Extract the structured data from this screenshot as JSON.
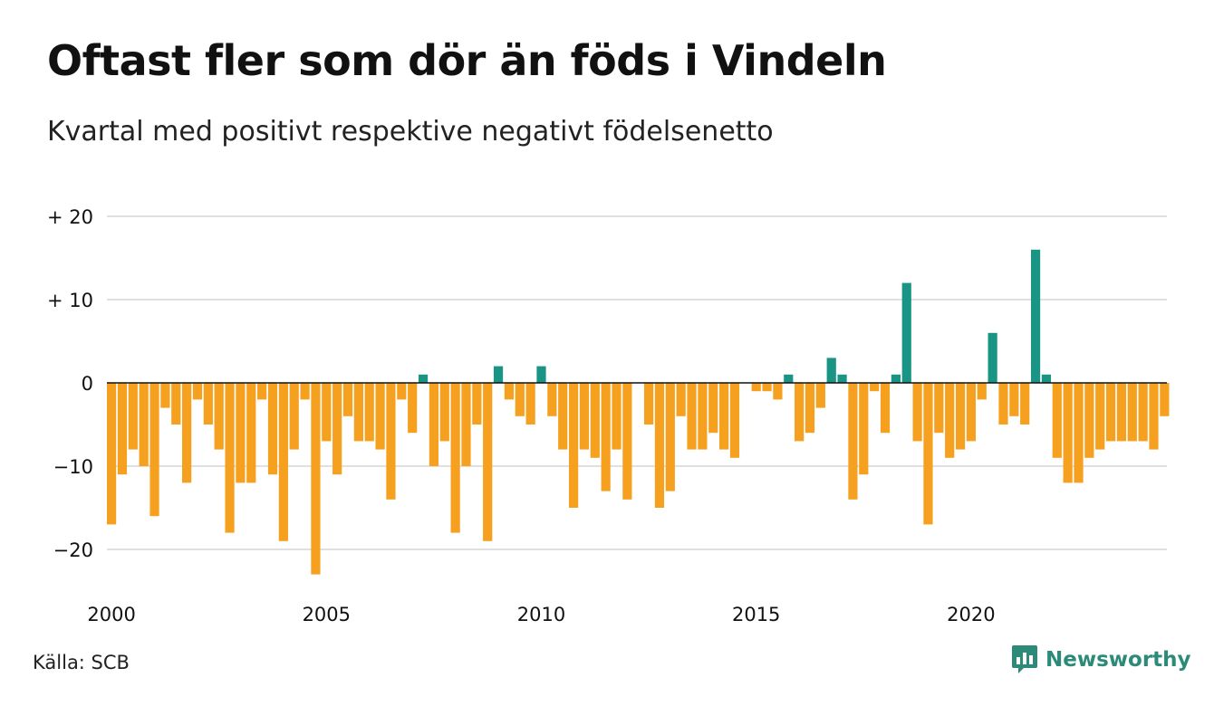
{
  "title": "Oftast fler som dör än föds i Vindeln",
  "subtitle": "Kvartal med positivt respektive negativt födelsenetto",
  "source": "Källa: SCB",
  "brand": "Newsworthy",
  "colors": {
    "positive": "#1a9485",
    "negative": "#f5a01e",
    "grid": "#e0e0e0",
    "zero": "#111111",
    "brand": "#2c8a78"
  },
  "chart_data": {
    "type": "bar",
    "title": "Oftast fler som dör än föds i Vindeln",
    "subtitle": "Kvartal med positivt respektive negativt födelsenetto",
    "frequency": "quarterly",
    "x_start": "2000 Q1",
    "x_end": "2024 Q3",
    "ylim": [
      -25,
      20
    ],
    "y_ticks": [
      {
        "value": 20,
        "label": "+ 20"
      },
      {
        "value": 10,
        "label": "+ 10"
      },
      {
        "value": 0,
        "label": "0"
      },
      {
        "value": -10,
        "label": "−10"
      },
      {
        "value": -20,
        "label": "−20"
      }
    ],
    "x_ticks": [
      {
        "value": 2000,
        "label": "2000"
      },
      {
        "value": 2005,
        "label": "2005"
      },
      {
        "value": 2010,
        "label": "2010"
      },
      {
        "value": 2015,
        "label": "2015"
      },
      {
        "value": 2020,
        "label": "2020"
      }
    ],
    "grid": true,
    "values": [
      -17,
      -11,
      -8,
      -10,
      -16,
      -3,
      -5,
      -12,
      -2,
      -5,
      -8,
      -18,
      -12,
      -12,
      -2,
      -11,
      -19,
      -8,
      -2,
      -23,
      -7,
      -11,
      -4,
      -7,
      -7,
      -8,
      -14,
      -2,
      -6,
      1,
      -10,
      -7,
      -18,
      -10,
      -5,
      -19,
      2,
      -2,
      -4,
      -5,
      2,
      -4,
      -8,
      -15,
      -8,
      -9,
      -13,
      -8,
      -14,
      0,
      -5,
      -15,
      -13,
      -4,
      -8,
      -8,
      -6,
      -8,
      -9,
      0,
      -1,
      -1,
      -2,
      1,
      -7,
      -6,
      -3,
      3,
      1,
      -14,
      -11,
      -1,
      -6,
      1,
      12,
      -7,
      -17,
      -6,
      -9,
      -8,
      -7,
      -2,
      6,
      -5,
      -4,
      -5,
      16,
      1,
      -9,
      -12,
      -12,
      -9,
      -8,
      -7,
      -7,
      -7,
      -7,
      -8,
      -4
    ]
  }
}
